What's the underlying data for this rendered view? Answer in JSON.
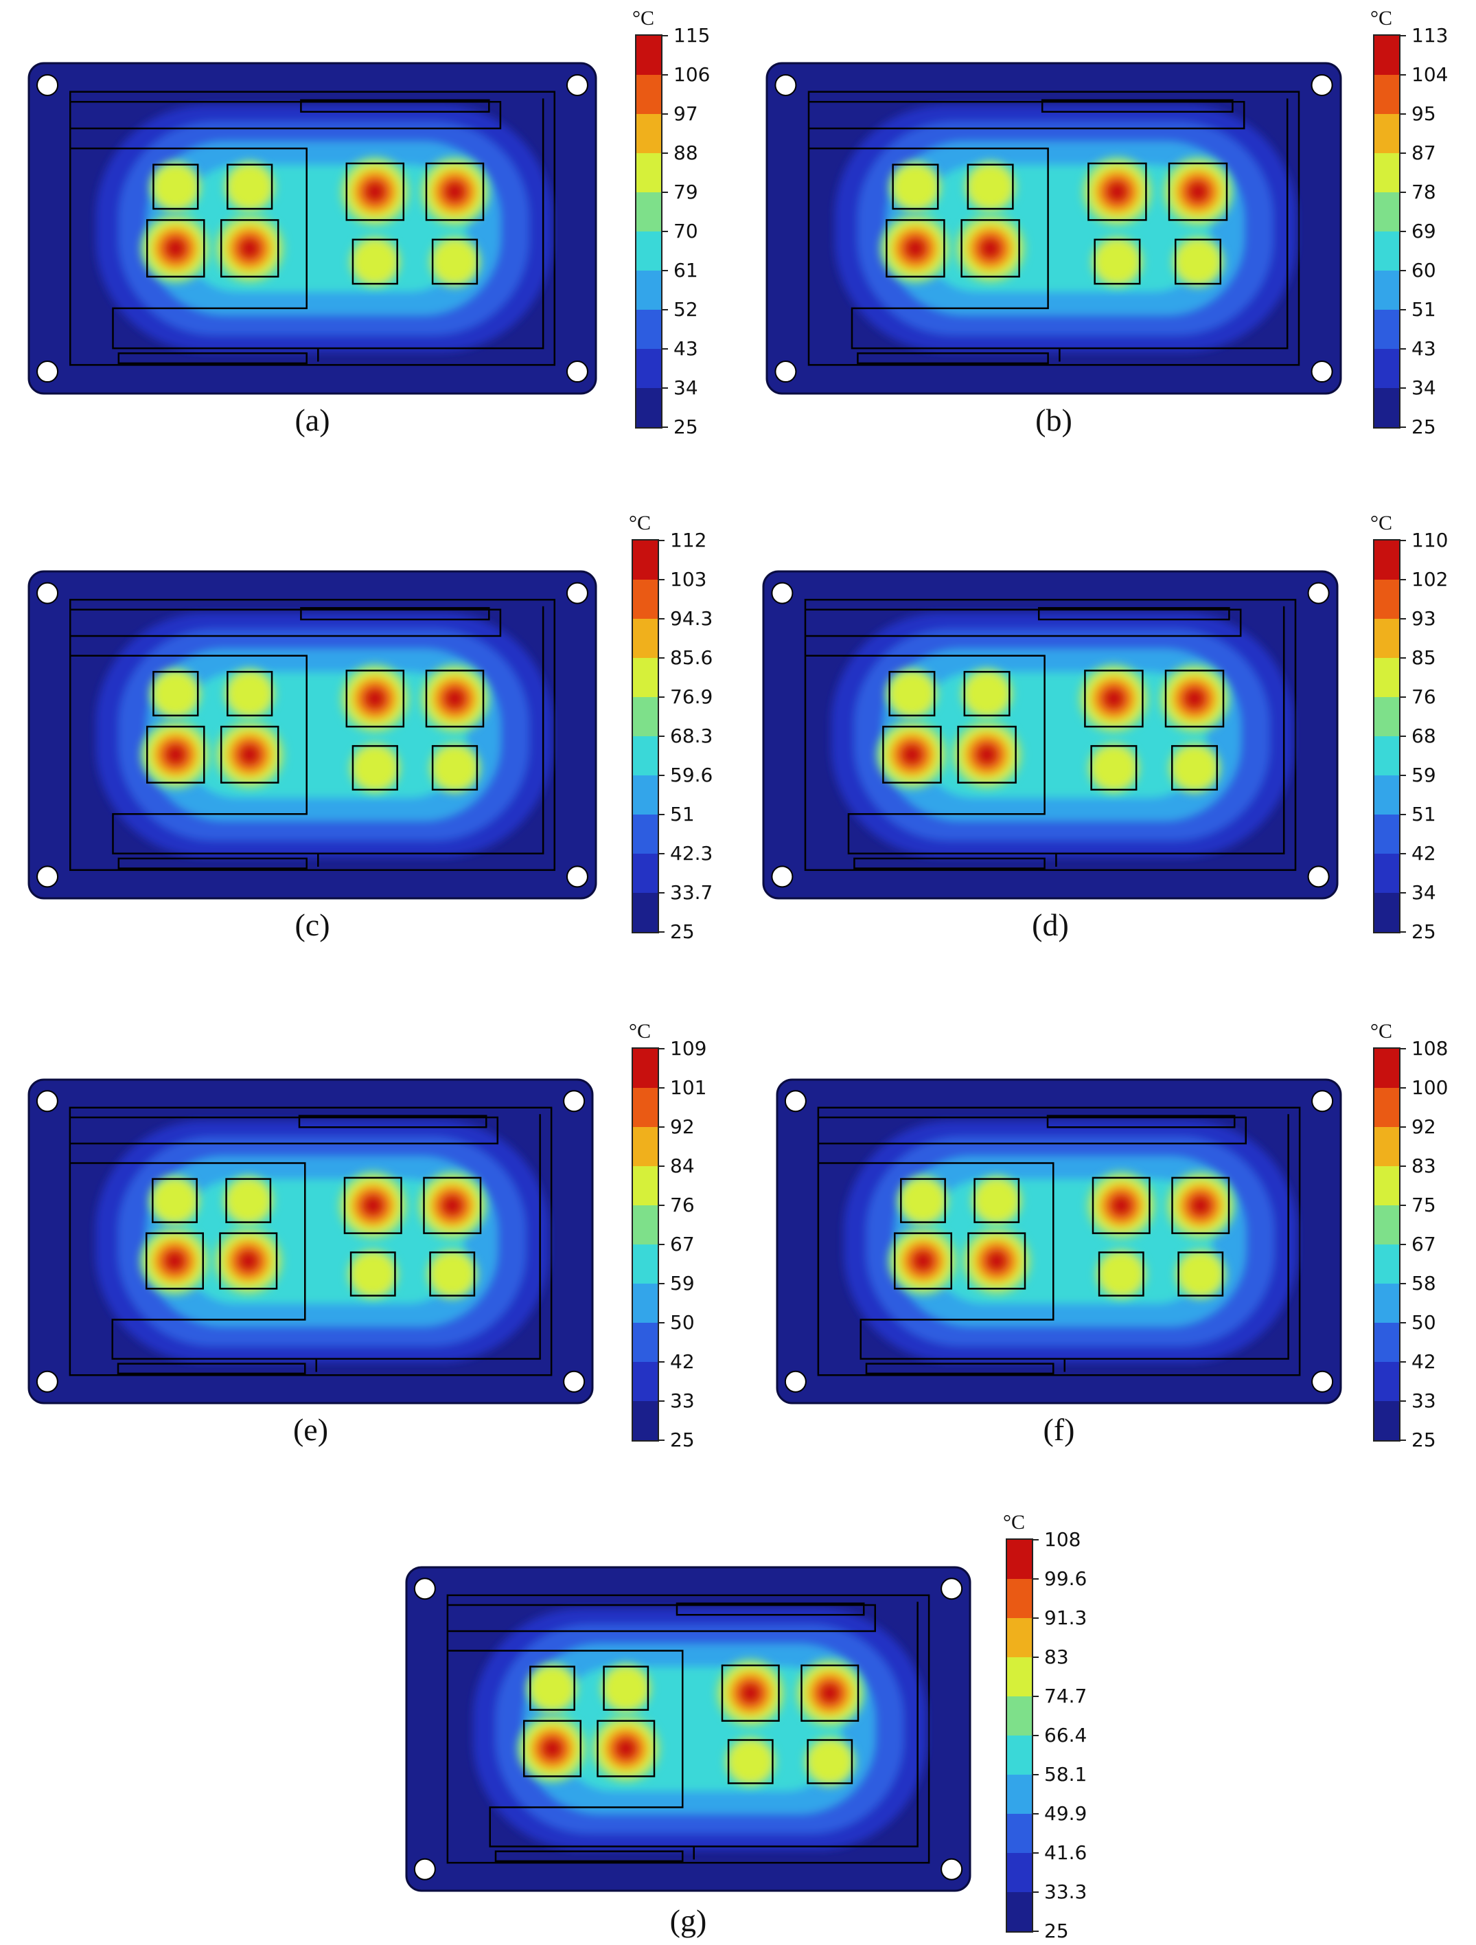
{
  "colormap": [
    "#1a1f8c",
    "#2433c4",
    "#2d5de0",
    "#33a5ea",
    "#3ad8d8",
    "#7ee08a",
    "#d6f03a",
    "#f0b01c",
    "#ea5a14",
    "#c8100e"
  ],
  "panels": [
    {
      "id": "a",
      "caption": "(a)",
      "unit": "°C",
      "ticks": [
        "115",
        "106",
        "97",
        "88",
        "79",
        "70",
        "61",
        "52",
        "43",
        "34",
        "25"
      ],
      "hot": [
        [
          1,
          1
        ],
        [
          1,
          1
        ],
        [
          0,
          0
        ]
      ]
    },
    {
      "id": "b",
      "caption": "(b)",
      "unit": "°C",
      "ticks": [
        "113",
        "104",
        "95",
        "87",
        "78",
        "69",
        "60",
        "51",
        "43",
        "34",
        "25"
      ],
      "hot": [
        [
          1,
          1
        ],
        [
          1,
          1
        ],
        [
          0,
          0
        ]
      ]
    },
    {
      "id": "c",
      "caption": "(c)",
      "unit": "°C",
      "ticks": [
        "112",
        "103",
        "94.3",
        "85.6",
        "76.9",
        "68.3",
        "59.6",
        "51",
        "42.3",
        "33.7",
        "25"
      ],
      "hot": [
        [
          1,
          1
        ],
        [
          1,
          1
        ],
        [
          0,
          0
        ]
      ]
    },
    {
      "id": "d",
      "caption": "(d)",
      "unit": "°C",
      "ticks": [
        "110",
        "102",
        "93",
        "85",
        "76",
        "68",
        "59",
        "51",
        "42",
        "34",
        "25"
      ],
      "hot": [
        [
          1,
          1
        ],
        [
          1,
          1
        ],
        [
          0,
          0
        ]
      ]
    },
    {
      "id": "e",
      "caption": "(e)",
      "unit": "°C",
      "ticks": [
        "109",
        "101",
        "92",
        "84",
        "76",
        "67",
        "59",
        "50",
        "42",
        "33",
        "25"
      ],
      "hot": [
        [
          1,
          1
        ],
        [
          1,
          1
        ],
        [
          0,
          0
        ]
      ]
    },
    {
      "id": "f",
      "caption": "(f)",
      "unit": "°C",
      "ticks": [
        "108",
        "100",
        "92",
        "83",
        "75",
        "67",
        "58",
        "50",
        "42",
        "33",
        "25"
      ],
      "hot": [
        [
          1,
          1
        ],
        [
          1,
          1
        ],
        [
          0,
          0
        ]
      ]
    },
    {
      "id": "g",
      "caption": "(g)",
      "unit": "°C",
      "ticks": [
        "108",
        "99.6",
        "91.3",
        "83",
        "74.7",
        "66.4",
        "58.1",
        "49.9",
        "41.6",
        "33.3",
        "25"
      ],
      "hot": [
        [
          1,
          1
        ],
        [
          1,
          1
        ],
        [
          0,
          0
        ]
      ]
    }
  ]
}
